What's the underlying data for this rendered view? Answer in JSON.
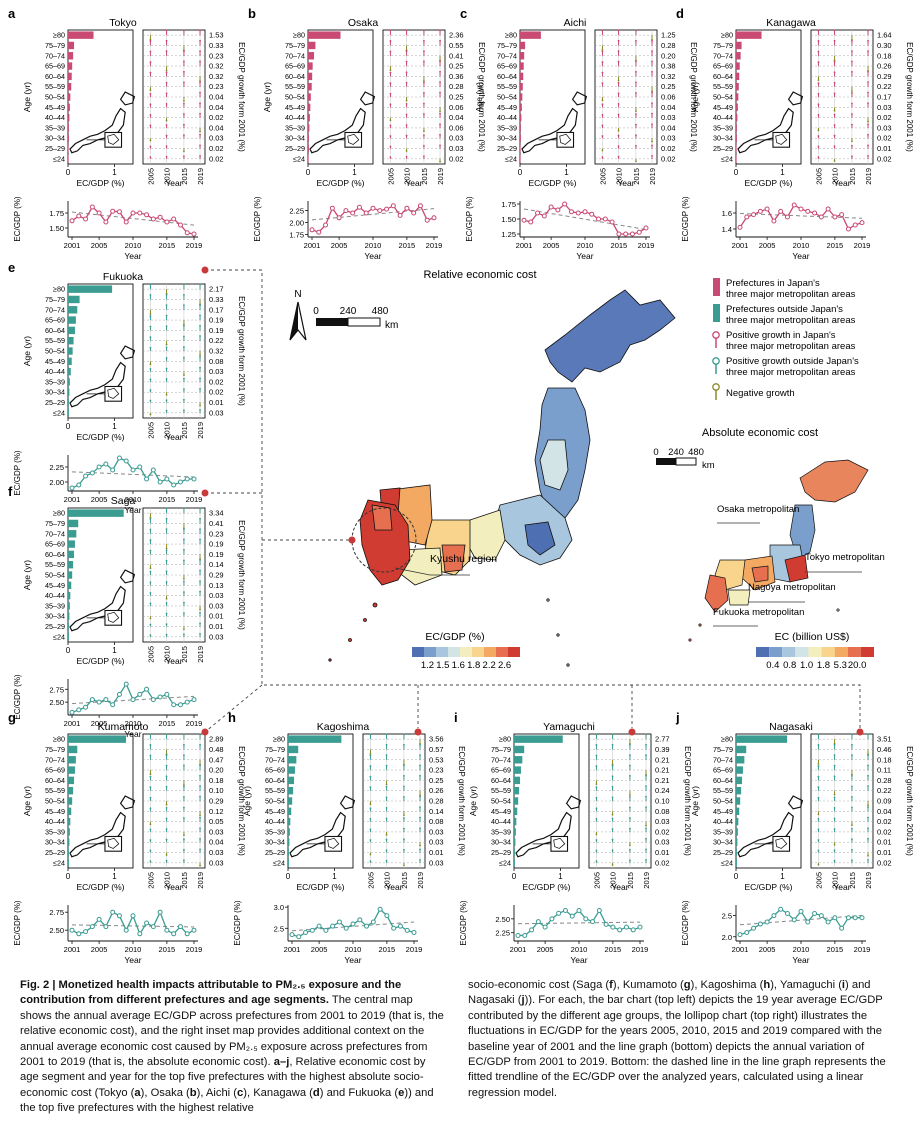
{
  "age_groups": [
    "≥80",
    "75–79",
    "70–74",
    "65–69",
    "60–64",
    "55–59",
    "50–54",
    "45–49",
    "40–44",
    "35–39",
    "30–34",
    "25–29",
    "≤24"
  ],
  "labels": {
    "age_axis": "Age (yr)",
    "bar_x_axis": "EC/GDP (%)",
    "year_axis": "Year",
    "growth_axis": "EC/GDP growth form 2001 (%)",
    "line_y_axis": "EC/GDP (%)",
    "lollipop_years": [
      "2005",
      "2010",
      "2015",
      "2019"
    ],
    "line_years": [
      "2001",
      "2005",
      "2010",
      "2015",
      "2019"
    ]
  },
  "central_map": {
    "title": "Relative economic cost",
    "north": "N",
    "scale_ticks": [
      "0",
      "240",
      "480"
    ],
    "scale_unit": "km",
    "kyushu_label": "Kyushu region",
    "colorbar_title": "EC/GDP (%)",
    "colorbar_ticks": [
      "1.2",
      "1.5",
      "1.6",
      "1.8",
      "2.2",
      "2.6"
    ],
    "colorbar_colors": [
      "#4f6fb3",
      "#7b9fcc",
      "#a9c6df",
      "#d3e4e6",
      "#f2eebd",
      "#f8d48c",
      "#f4a963",
      "#e56f4e",
      "#d13c32"
    ]
  },
  "inset_map": {
    "title": "Absolute economic cost",
    "scale_ticks": [
      "0",
      "240",
      "480"
    ],
    "scale_unit": "km",
    "metro_labels": [
      "Osaka metropolitan",
      "Tokyo metropolitan",
      "Nagoya metropolitan",
      "Fukuoka metropolitan"
    ],
    "colorbar_title": "EC (billion US$)",
    "colorbar_ticks": [
      "0.4",
      "0.8",
      "1.0",
      "1.8",
      "5.3",
      "20.0"
    ]
  },
  "legend": {
    "items": [
      {
        "text": "Prefectures in Japan's three major metropolitan areas",
        "color": "#c94a72"
      },
      {
        "text": "Prefectures outside Japan's three major metropolitan areas",
        "color": "#3b9c92"
      },
      {
        "text": "Positive growth in Japan's three major metropolitan areas",
        "color": "#c94a72"
      },
      {
        "text": "Positive growth outside Japan's three major metropolitan areas",
        "color": "#3b9c92"
      },
      {
        "text": "Negative growth",
        "color": "#8a8a2a"
      }
    ]
  },
  "chart_data": [
    {
      "type": "bar+lollipop+line",
      "panel": "a",
      "title": "Tokyo",
      "group": "metro",
      "bar_values": [
        0.55,
        0.13,
        0.11,
        0.09,
        0.08,
        0.07,
        0.05,
        0.04,
        0.03,
        0.02,
        0.02,
        0.01,
        0.01
      ],
      "bar_xlim": [
        0,
        1.4
      ],
      "bar_ticks": [
        "0",
        "1"
      ],
      "growth_labels": [
        "1.53",
        "0.33",
        "0.23",
        "0.32",
        "0.32",
        "0.23",
        "0.04",
        "0.04",
        "0.02",
        "0.04",
        "0.03",
        "0.02",
        "0.02"
      ],
      "line": {
        "x": [
          2001,
          2002,
          2003,
          2004,
          2005,
          2006,
          2007,
          2008,
          2009,
          2010,
          2011,
          2012,
          2013,
          2014,
          2015,
          2016,
          2017,
          2018,
          2019
        ],
        "y": [
          1.62,
          1.7,
          1.65,
          1.85,
          1.75,
          1.6,
          1.78,
          1.77,
          1.6,
          1.75,
          1.75,
          1.72,
          1.65,
          1.68,
          1.6,
          1.65,
          1.55,
          1.42,
          1.4
        ],
        "yticks": [
          "1.50",
          "1.75"
        ],
        "ylim": [
          1.35,
          1.95
        ]
      }
    },
    {
      "type": "bar+lollipop+line",
      "panel": "b",
      "title": "Osaka",
      "group": "metro",
      "bar_values": [
        0.7,
        0.16,
        0.13,
        0.1,
        0.09,
        0.08,
        0.06,
        0.05,
        0.04,
        0.03,
        0.02,
        0.02,
        0.01
      ],
      "bar_xlim": [
        0,
        1.4
      ],
      "bar_ticks": [
        "0",
        "1"
      ],
      "growth_labels": [
        "2.36",
        "0.55",
        "0.41",
        "0.25",
        "0.36",
        "0.28",
        "0.25",
        "0.06",
        "0.04",
        "0.06",
        "0.03",
        "0.03",
        "0.02"
      ],
      "line": {
        "x": [
          2001,
          2002,
          2003,
          2004,
          2005,
          2006,
          2007,
          2008,
          2009,
          2010,
          2011,
          2012,
          2013,
          2014,
          2015,
          2016,
          2017,
          2018,
          2019
        ],
        "y": [
          1.85,
          1.8,
          1.95,
          2.3,
          2.1,
          2.25,
          2.2,
          2.32,
          2.2,
          2.3,
          2.25,
          2.28,
          2.35,
          2.15,
          2.3,
          2.2,
          2.35,
          2.05,
          2.1
        ],
        "yticks": [
          "1.75",
          "2.00",
          "2.25"
        ],
        "ylim": [
          1.7,
          2.45
        ]
      }
    },
    {
      "type": "bar+lollipop+line",
      "panel": "c",
      "title": "Aichi",
      "group": "metro",
      "bar_values": [
        0.45,
        0.11,
        0.09,
        0.08,
        0.07,
        0.06,
        0.05,
        0.04,
        0.03,
        0.02,
        0.02,
        0.01,
        0.01
      ],
      "bar_xlim": [
        0,
        1.4
      ],
      "bar_ticks": [
        "0",
        "1"
      ],
      "growth_labels": [
        "1.25",
        "0.28",
        "0.20",
        "0.38",
        "0.32",
        "0.25",
        "0.06",
        "0.04",
        "0.03",
        "0.04",
        "0.03",
        "0.02",
        "0.02"
      ],
      "line": {
        "x": [
          2001,
          2002,
          2003,
          2004,
          2005,
          2006,
          2007,
          2008,
          2009,
          2010,
          2011,
          2012,
          2013,
          2014,
          2015,
          2016,
          2017,
          2018,
          2019
        ],
        "y": [
          1.48,
          1.45,
          1.6,
          1.55,
          1.7,
          1.65,
          1.75,
          1.62,
          1.6,
          1.62,
          1.58,
          1.5,
          1.5,
          1.45,
          1.25,
          1.25,
          1.25,
          1.28,
          1.35
        ],
        "yticks": [
          "1.25",
          "1.50",
          "1.75"
        ],
        "ylim": [
          1.2,
          1.8
        ]
      }
    },
    {
      "type": "bar+lollipop+line",
      "panel": "d",
      "title": "Kanagawa",
      "group": "metro",
      "bar_values": [
        0.55,
        0.12,
        0.1,
        0.08,
        0.07,
        0.06,
        0.05,
        0.04,
        0.03,
        0.02,
        0.02,
        0.01,
        0.01
      ],
      "bar_xlim": [
        0,
        1.4
      ],
      "bar_ticks": [
        "0",
        "1"
      ],
      "growth_labels": [
        "1.64",
        "0.30",
        "0.18",
        "0.26",
        "0.29",
        "0.22",
        "0.17",
        "0.03",
        "0.02",
        "0.03",
        "0.02",
        "0.01",
        "0.02"
      ],
      "line": {
        "x": [
          2001,
          2002,
          2003,
          2004,
          2005,
          2006,
          2007,
          2008,
          2009,
          2010,
          2011,
          2012,
          2013,
          2014,
          2015,
          2016,
          2017,
          2018,
          2019
        ],
        "y": [
          1.42,
          1.55,
          1.58,
          1.62,
          1.65,
          1.5,
          1.62,
          1.55,
          1.7,
          1.65,
          1.62,
          1.6,
          1.55,
          1.65,
          1.55,
          1.58,
          1.4,
          1.45,
          1.48
        ],
        "yticks": [
          "1.4",
          "1.6"
        ],
        "ylim": [
          1.3,
          1.75
        ]
      }
    },
    {
      "type": "bar+lollipop+line",
      "panel": "e",
      "title": "Fukuoka",
      "group": "non-metro",
      "bar_values": [
        0.95,
        0.25,
        0.2,
        0.17,
        0.15,
        0.12,
        0.1,
        0.08,
        0.06,
        0.04,
        0.03,
        0.02,
        0.02
      ],
      "bar_xlim": [
        0,
        1.4
      ],
      "bar_ticks": [
        "0",
        "1"
      ],
      "growth_labels": [
        "2.17",
        "0.33",
        "0.17",
        "0.19",
        "0.19",
        "0.22",
        "0.32",
        "0.08",
        "0.03",
        "0.02",
        "0.02",
        "0.01",
        "0.03"
      ],
      "line": {
        "x": [
          2001,
          2002,
          2003,
          2004,
          2005,
          2006,
          2007,
          2008,
          2009,
          2010,
          2011,
          2012,
          2013,
          2014,
          2015,
          2016,
          2017,
          2018,
          2019
        ],
        "y": [
          1.9,
          1.95,
          2.1,
          2.15,
          2.25,
          2.3,
          2.2,
          2.4,
          2.35,
          2.2,
          2.25,
          2.05,
          2.2,
          2.0,
          2.05,
          1.95,
          2.0,
          2.05,
          2.05
        ],
        "yticks": [
          "2.00",
          "2.25"
        ],
        "ylim": [
          1.85,
          2.45
        ]
      }
    },
    {
      "type": "bar+lollipop+line",
      "panel": "f",
      "title": "Saga",
      "group": "non-metro",
      "bar_values": [
        1.2,
        0.22,
        0.18,
        0.15,
        0.13,
        0.11,
        0.09,
        0.07,
        0.05,
        0.04,
        0.03,
        0.02,
        0.02
      ],
      "bar_xlim": [
        0,
        1.4
      ],
      "bar_ticks": [
        "0",
        "1"
      ],
      "growth_labels": [
        "3.34",
        "0.41",
        "0.23",
        "0.19",
        "0.19",
        "0.14",
        "0.29",
        "0.13",
        "0.03",
        "0.03",
        "0.01",
        "0.01",
        "0.03"
      ],
      "line": {
        "x": [
          2001,
          2002,
          2003,
          2004,
          2005,
          2006,
          2007,
          2008,
          2009,
          2010,
          2011,
          2012,
          2013,
          2014,
          2015,
          2016,
          2017,
          2018,
          2019
        ],
        "y": [
          2.3,
          2.35,
          2.4,
          2.55,
          2.5,
          2.55,
          2.45,
          2.65,
          2.85,
          2.55,
          2.65,
          2.75,
          2.55,
          2.6,
          2.65,
          2.45,
          2.45,
          2.5,
          2.55
        ],
        "yticks": [
          "2.50",
          "2.75"
        ],
        "ylim": [
          2.25,
          2.95
        ]
      }
    },
    {
      "type": "bar+lollipop+line",
      "panel": "g",
      "title": "Kumamoto",
      "group": "non-metro",
      "bar_values": [
        1.25,
        0.2,
        0.17,
        0.15,
        0.13,
        0.11,
        0.09,
        0.07,
        0.05,
        0.04,
        0.03,
        0.02,
        0.02
      ],
      "bar_xlim": [
        0,
        1.4
      ],
      "bar_ticks": [
        "0",
        "1"
      ],
      "growth_labels": [
        "2.89",
        "0.48",
        "0.47",
        "0.20",
        "0.18",
        "0.10",
        "0.29",
        "0.12",
        "0.05",
        "0.03",
        "0.04",
        "0.03",
        "0.03"
      ],
      "line": {
        "x": [
          2001,
          2002,
          2003,
          2004,
          2005,
          2006,
          2007,
          2008,
          2009,
          2010,
          2011,
          2012,
          2013,
          2014,
          2015,
          2016,
          2017,
          2018,
          2019
        ],
        "y": [
          2.5,
          2.45,
          2.48,
          2.55,
          2.65,
          2.55,
          2.75,
          2.7,
          2.5,
          2.7,
          2.45,
          2.6,
          2.55,
          2.75,
          2.5,
          2.45,
          2.55,
          2.45,
          2.5
        ],
        "yticks": [
          "2.50",
          "2.75"
        ],
        "ylim": [
          2.35,
          2.85
        ]
      }
    },
    {
      "type": "bar+lollipop+line",
      "panel": "h",
      "title": "Kagoshima",
      "group": "non-metro",
      "bar_values": [
        1.15,
        0.22,
        0.18,
        0.15,
        0.13,
        0.11,
        0.09,
        0.07,
        0.05,
        0.04,
        0.03,
        0.02,
        0.02
      ],
      "bar_xlim": [
        0,
        1.4
      ],
      "bar_ticks": [
        "0",
        "1"
      ],
      "growth_labels": [
        "3.56",
        "0.57",
        "0.53",
        "0.23",
        "0.25",
        "0.26",
        "0.28",
        "0.14",
        "0.08",
        "0.03",
        "0.03",
        "0.01",
        "0.03"
      ],
      "line": {
        "x": [
          2001,
          2002,
          2003,
          2004,
          2005,
          2006,
          2007,
          2008,
          2009,
          2010,
          2011,
          2012,
          2013,
          2014,
          2015,
          2016,
          2017,
          2018,
          2019
        ],
        "y": [
          2.35,
          2.3,
          2.4,
          2.45,
          2.55,
          2.45,
          2.55,
          2.65,
          2.5,
          2.6,
          2.7,
          2.55,
          2.65,
          2.95,
          2.8,
          2.5,
          2.55,
          2.45,
          2.4
        ],
        "yticks": [
          "2.5",
          "3.0"
        ],
        "ylim": [
          2.2,
          3.05
        ]
      }
    },
    {
      "type": "bar+lollipop+line",
      "panel": "i",
      "title": "Yamaguchi",
      "group": "non-metro",
      "bar_values": [
        1.05,
        0.22,
        0.18,
        0.15,
        0.13,
        0.11,
        0.09,
        0.07,
        0.05,
        0.04,
        0.03,
        0.02,
        0.02
      ],
      "bar_xlim": [
        0,
        1.4
      ],
      "bar_ticks": [
        "0",
        "1"
      ],
      "growth_labels": [
        "2.77",
        "0.39",
        "0.21",
        "0.21",
        "0.21",
        "0.24",
        "0.10",
        "0.08",
        "0.03",
        "0.02",
        "0.03",
        "0.01",
        "0.02"
      ],
      "line": {
        "x": [
          2001,
          2002,
          2003,
          2004,
          2005,
          2006,
          2007,
          2008,
          2009,
          2010,
          2011,
          2012,
          2013,
          2014,
          2015,
          2016,
          2017,
          2018,
          2019
        ],
        "y": [
          2.2,
          2.2,
          2.3,
          2.45,
          2.35,
          2.5,
          2.6,
          2.65,
          2.55,
          2.65,
          2.5,
          2.45,
          2.65,
          2.4,
          2.35,
          2.3,
          2.35,
          2.3,
          2.35
        ],
        "yticks": [
          "2.25",
          "2.50"
        ],
        "ylim": [
          2.1,
          2.75
        ]
      }
    },
    {
      "type": "bar+lollipop+line",
      "panel": "j",
      "title": "Nagasaki",
      "group": "non-metro",
      "bar_values": [
        1.1,
        0.22,
        0.18,
        0.15,
        0.13,
        0.11,
        0.09,
        0.07,
        0.05,
        0.04,
        0.03,
        0.02,
        0.02
      ],
      "bar_xlim": [
        0,
        1.4
      ],
      "bar_ticks": [
        "0",
        "1"
      ],
      "growth_labels": [
        "3.51",
        "0.46",
        "0.18",
        "0.11",
        "0.28",
        "0.22",
        "0.09",
        "0.04",
        "0.02",
        "0.02",
        "0.01",
        "0.01",
        "0.02"
      ],
      "line": {
        "x": [
          2001,
          2002,
          2003,
          2004,
          2005,
          2006,
          2007,
          2008,
          2009,
          2010,
          2011,
          2012,
          2013,
          2014,
          2015,
          2016,
          2017,
          2018,
          2019
        ],
        "y": [
          2.05,
          2.1,
          2.2,
          2.3,
          2.35,
          2.5,
          2.65,
          2.55,
          2.4,
          2.6,
          2.35,
          2.55,
          2.5,
          2.35,
          2.45,
          2.2,
          2.45,
          2.45,
          2.45
        ],
        "yticks": [
          "2.0",
          "2.5"
        ],
        "ylim": [
          1.9,
          2.75
        ]
      }
    }
  ],
  "caption": {
    "left": [
      {
        "b": "Fig. 2 | Monetized health impacts attributable to PM₂.₅ exposure and the contribution from different prefectures and age segments."
      },
      {
        "t": " The central map shows the annual average EC/GDP across prefectures from 2001 to 2019 (that is, the relative economic cost), and the right inset map provides additional context on the annual average economic cost caused by PM₂.₅ exposure across prefectures from 2001 to 2019 (that is, the absolute economic cost). "
      },
      {
        "b": "a–j"
      },
      {
        "t": ", Relative economic cost by age segment and year for the top five prefectures with the highest absolute socio-economic cost (Tokyo ("
      },
      {
        "b": "a"
      },
      {
        "t": "), Osaka ("
      },
      {
        "b": "b"
      },
      {
        "t": "), Aichi ("
      },
      {
        "b": "c"
      },
      {
        "t": "), Kanagawa ("
      },
      {
        "b": "d"
      },
      {
        "t": ") and Fukuoka ("
      },
      {
        "b": "e"
      },
      {
        "t": ")) and the top five prefectures with the highest relative"
      }
    ],
    "right": [
      {
        "t": "socio-economic cost (Saga ("
      },
      {
        "b": "f"
      },
      {
        "t": "), Kumamoto ("
      },
      {
        "b": "g"
      },
      {
        "t": "), Kagoshima ("
      },
      {
        "b": "h"
      },
      {
        "t": "), Yamaguchi ("
      },
      {
        "b": "i"
      },
      {
        "t": ") and Nagasaki ("
      },
      {
        "b": "j"
      },
      {
        "t": ")). For each, the bar chart (top left) depicts the 19 year average EC/GDP contributed by the different age groups, the lollipop chart (top right) illustrates the fluctuations in EC/GDP for the years 2005, 2010, 2015 and 2019 compared with the baseline year of 2001 and the line graph (bottom) depicts the annual variation of EC/GDP from 2001 to 2019. Bottom: the dashed line in the line graph represents the fitted trendline of the EC/GDP over the analyzed years, calculated using a linear regression model."
      }
    ]
  }
}
